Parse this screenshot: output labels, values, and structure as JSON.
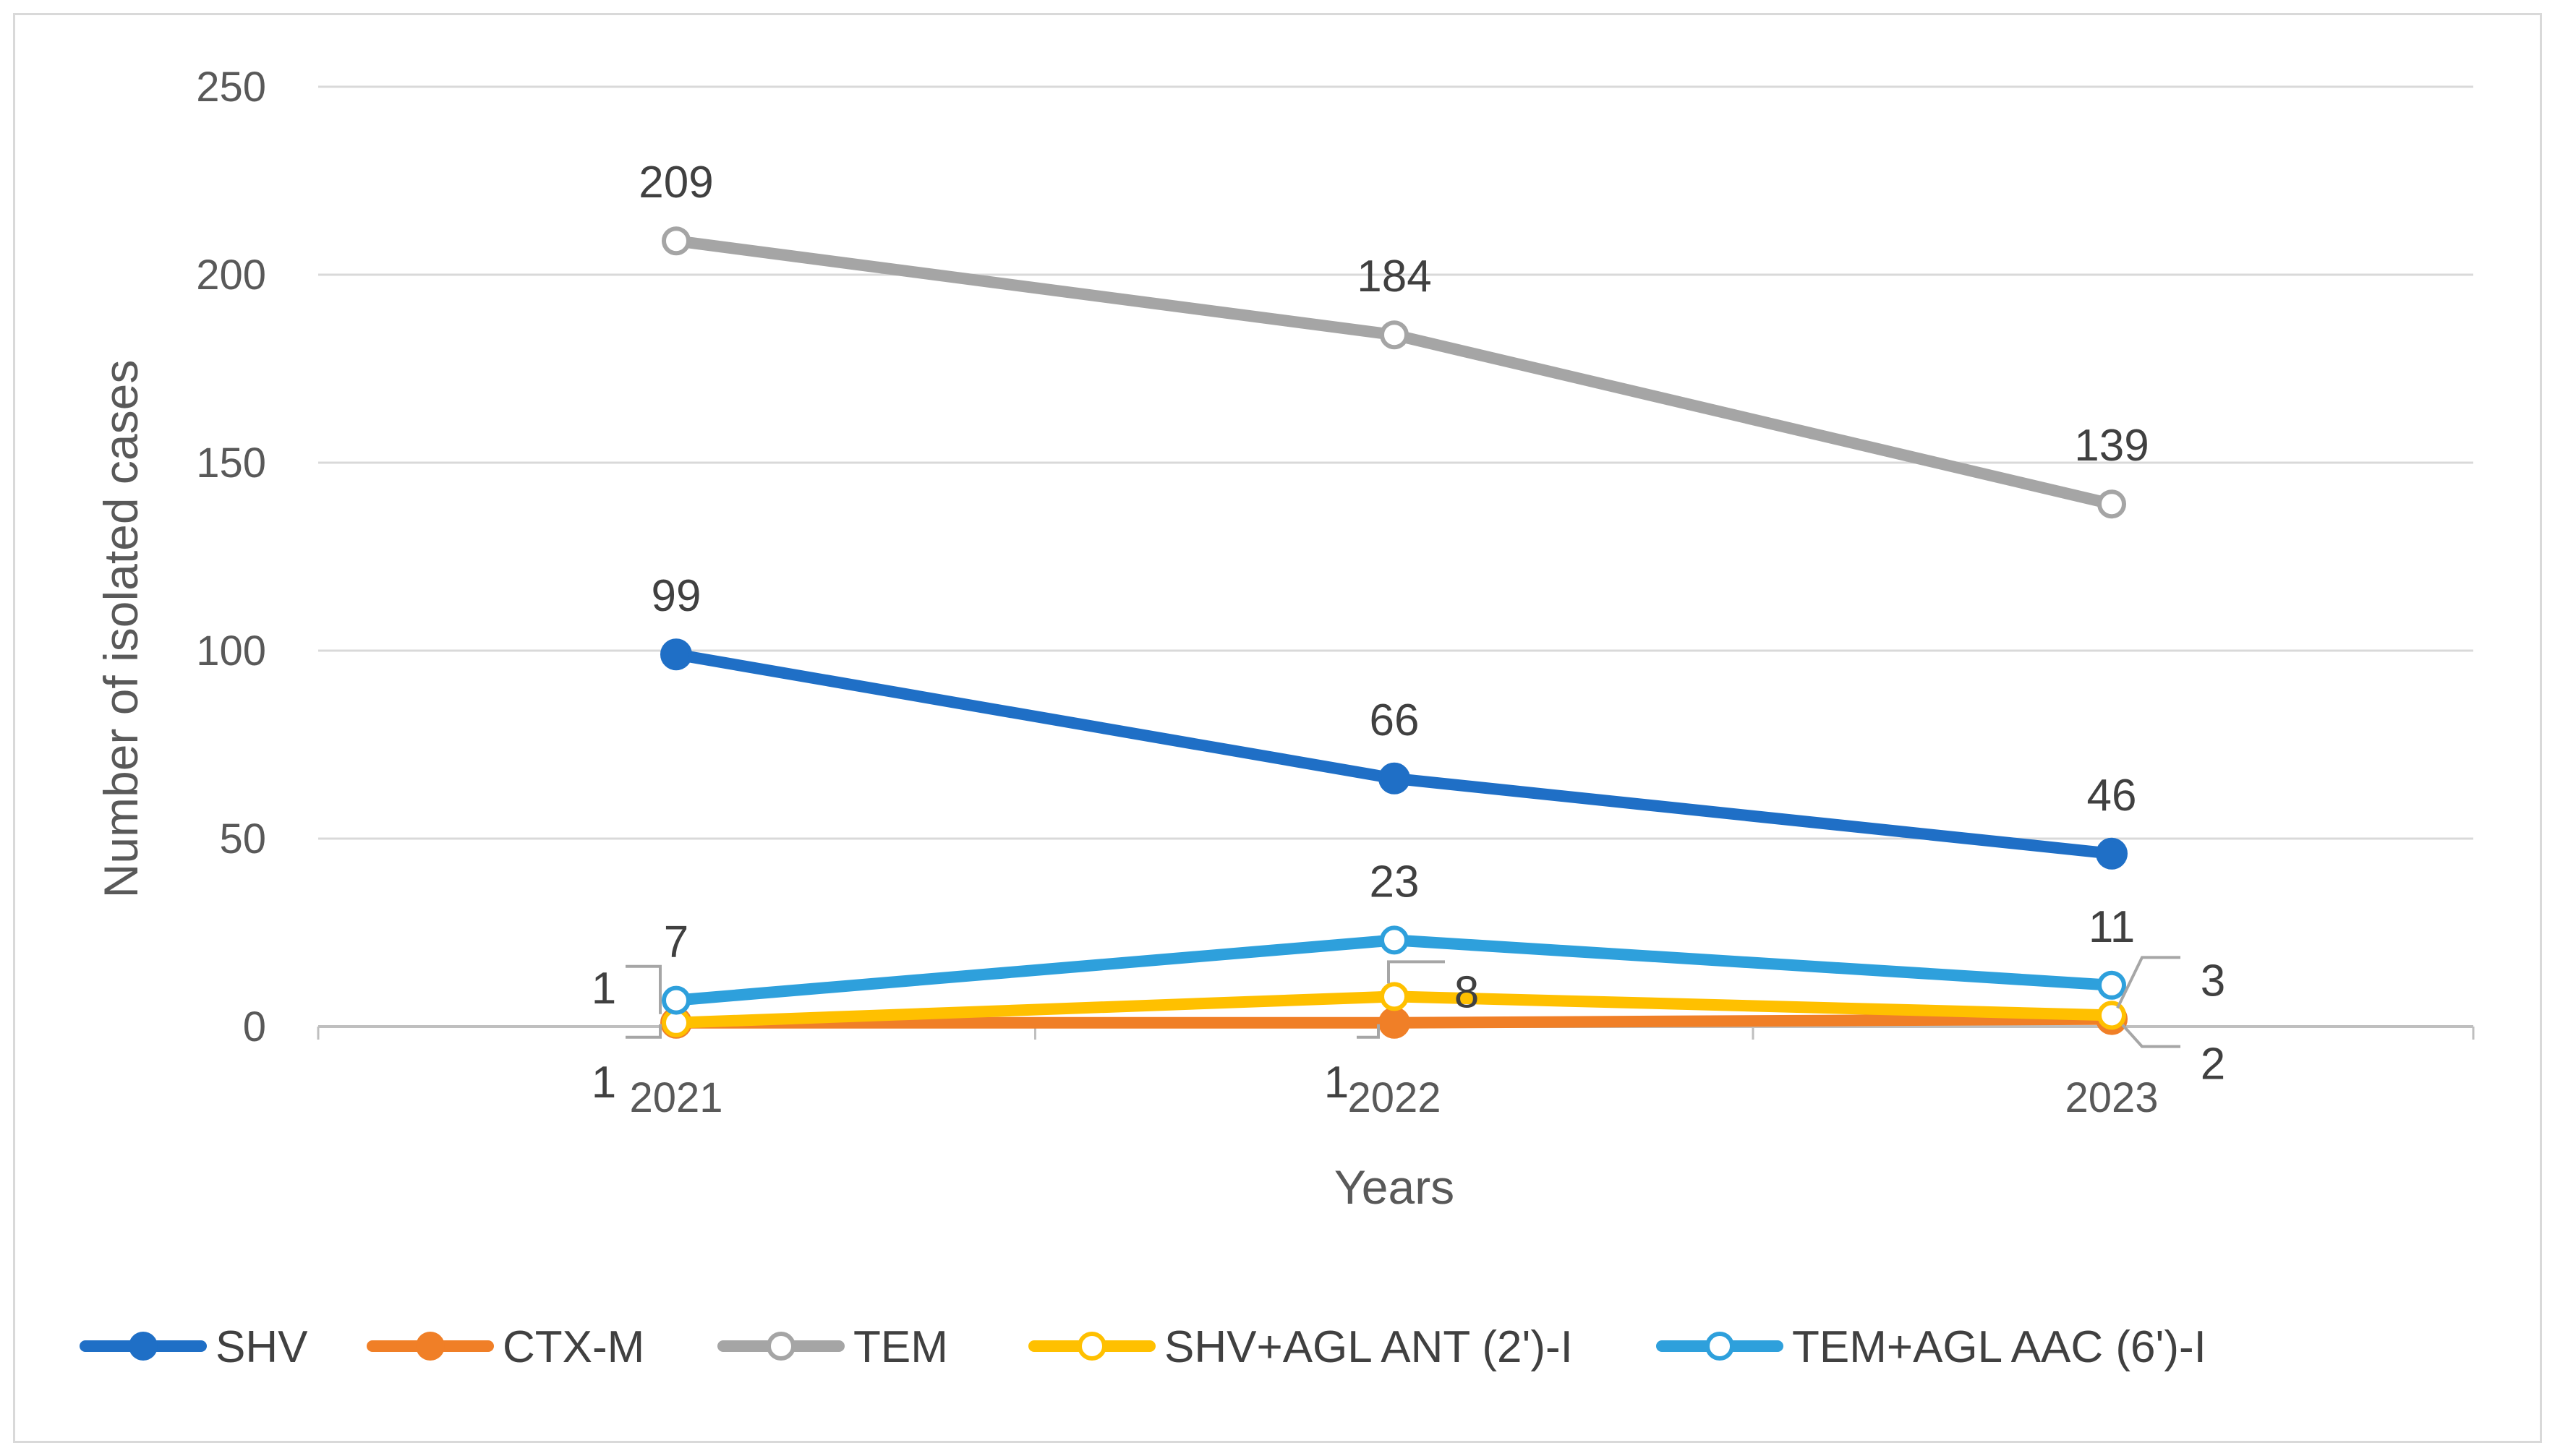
{
  "chart_data": {
    "type": "line",
    "title": "",
    "xlabel": "Years",
    "ylabel": "Number of isolated cases",
    "categories": [
      "2021",
      "2022",
      "2023"
    ],
    "ylim": [
      0,
      250
    ],
    "yticks": [
      0,
      50,
      100,
      150,
      200,
      250
    ],
    "grid": true,
    "legend_position": "bottom",
    "series": [
      {
        "name": "SHV",
        "values": [
          99,
          66,
          46
        ],
        "color": "#1f6fc6",
        "marker": "filled"
      },
      {
        "name": "CTX-M",
        "values": [
          1,
          1,
          2
        ],
        "color": "#f07f27",
        "marker": "filled"
      },
      {
        "name": "TEM",
        "values": [
          209,
          184,
          139
        ],
        "color": "#a5a5a5",
        "marker": "hollow"
      },
      {
        "name": "SHV+AGL ANT (2')-I",
        "values": [
          1,
          8,
          3
        ],
        "color": "#ffc000",
        "marker": "hollow"
      },
      {
        "name": "TEM+AGL AAC (6')-I",
        "values": [
          7,
          23,
          11
        ],
        "color": "#2ea0dc",
        "marker": "hollow"
      }
    ]
  }
}
